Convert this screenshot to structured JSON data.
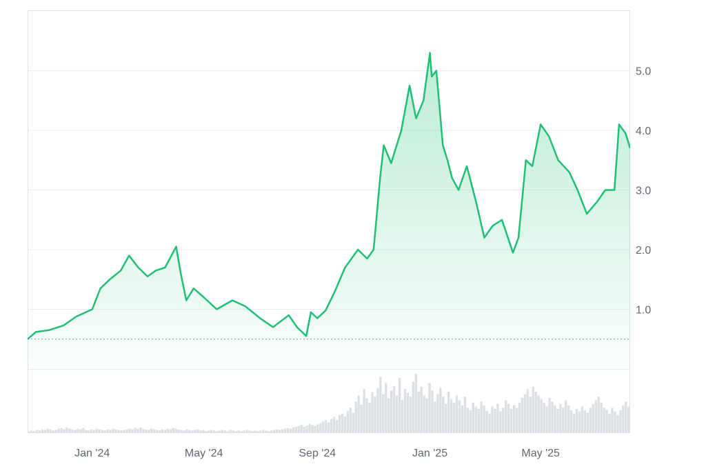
{
  "colors": {
    "line": "#1fbf75",
    "grid": "#ececf0",
    "border": "#dfe1e6",
    "volume": "#dcdfe4",
    "baseline": "#8a8f98",
    "text": "#5f6672"
  },
  "chart_data": {
    "type": "area",
    "title": "",
    "xlabel": "",
    "ylabel": "",
    "x_range": [
      "2023-10-23",
      "2025-08-06"
    ],
    "ylim": [
      0,
      6.0
    ],
    "y_ticks": [
      "1.0",
      "2.0",
      "3.0",
      "4.0",
      "5.0"
    ],
    "x_ticks": [
      {
        "date": "2024-01-01",
        "label": "Jan '24"
      },
      {
        "date": "2024-05-01",
        "label": "May '24"
      },
      {
        "date": "2024-09-01",
        "label": "Sep '24"
      },
      {
        "date": "2025-01-01",
        "label": "Jan '25"
      },
      {
        "date": "2025-05-01",
        "label": "May '25"
      }
    ],
    "start_price": 0.5,
    "series": [
      {
        "x": [
          "2023-10-23",
          "2023-11-01",
          "2023-11-15",
          "2023-12-01",
          "2023-12-15",
          "2024-01-01",
          "2024-01-10",
          "2024-01-20",
          "2024-02-01",
          "2024-02-10",
          "2024-02-20",
          "2024-03-01",
          "2024-03-10",
          "2024-03-20",
          "2024-04-01",
          "2024-04-06",
          "2024-04-12",
          "2024-04-20",
          "2024-05-01",
          "2024-05-15",
          "2024-06-01",
          "2024-06-15",
          "2024-07-01",
          "2024-07-15",
          "2024-08-01",
          "2024-08-10",
          "2024-08-20",
          "2024-08-25",
          "2024-09-01",
          "2024-09-10",
          "2024-09-20",
          "2024-10-01",
          "2024-10-15",
          "2024-10-25",
          "2024-11-01",
          "2024-11-08",
          "2024-11-12",
          "2024-11-20",
          "2024-12-01",
          "2024-12-10",
          "2024-12-17",
          "2024-12-25",
          "2025-01-01",
          "2025-01-03",
          "2025-01-08",
          "2025-01-15",
          "2025-01-20",
          "2025-01-25",
          "2025-02-01",
          "2025-02-10",
          "2025-02-20",
          "2025-03-01",
          "2025-03-10",
          "2025-03-20",
          "2025-04-01",
          "2025-04-07",
          "2025-04-15",
          "2025-04-22",
          "2025-05-01",
          "2025-05-10",
          "2025-05-20",
          "2025-06-01",
          "2025-06-10",
          "2025-06-20",
          "2025-07-01",
          "2025-07-10",
          "2025-07-20",
          "2025-07-25",
          "2025-08-01",
          "2025-08-06"
        ],
        "y": [
          0.5,
          0.62,
          0.65,
          0.73,
          0.88,
          1.0,
          1.35,
          1.5,
          1.65,
          1.9,
          1.7,
          1.55,
          1.65,
          1.7,
          2.05,
          1.6,
          1.15,
          1.35,
          1.2,
          1.0,
          1.15,
          1.05,
          0.85,
          0.7,
          0.9,
          0.7,
          0.55,
          0.95,
          0.85,
          0.98,
          1.3,
          1.7,
          2.0,
          1.85,
          2.0,
          3.2,
          3.75,
          3.45,
          4.0,
          4.75,
          4.2,
          4.5,
          5.3,
          4.9,
          5.0,
          3.75,
          3.5,
          3.2,
          3.0,
          3.4,
          2.8,
          2.2,
          2.4,
          2.5,
          1.95,
          2.2,
          3.5,
          3.4,
          4.1,
          3.9,
          3.5,
          3.3,
          3.0,
          2.6,
          2.8,
          3.0,
          3.0,
          4.1,
          3.95,
          3.7
        ]
      }
    ],
    "volume": [
      2,
      3,
      2,
      4,
      3,
      5,
      4,
      6,
      5,
      3,
      4,
      6,
      7,
      5,
      8,
      6,
      5,
      4,
      6,
      5,
      7,
      4,
      3,
      5,
      4,
      6,
      5,
      4,
      3,
      5,
      4,
      6,
      5,
      4,
      3,
      4,
      5,
      6,
      5,
      7,
      6,
      8,
      6,
      5,
      4,
      6,
      5,
      4,
      3,
      5,
      4,
      6,
      5,
      7,
      6,
      5,
      4,
      3,
      5,
      4,
      3,
      4,
      5,
      3,
      4,
      2,
      3,
      4,
      3,
      2,
      3,
      4,
      3,
      2,
      4,
      3,
      2,
      3,
      2,
      3,
      4,
      3,
      2,
      3,
      2,
      3,
      4,
      3,
      2,
      3,
      4,
      5,
      4,
      5,
      6,
      7,
      6,
      8,
      9,
      10,
      12,
      9,
      11,
      14,
      12,
      10,
      13,
      15,
      18,
      20,
      16,
      22,
      25,
      20,
      28,
      30,
      26,
      35,
      40,
      32,
      50,
      60,
      45,
      70,
      55,
      48,
      65,
      58,
      72,
      90,
      62,
      80,
      55,
      68,
      75,
      60,
      88,
      52,
      70,
      64,
      58,
      82,
      95,
      66,
      74,
      60,
      55,
      80,
      68,
      50,
      62,
      72,
      58,
      46,
      66,
      54,
      48,
      60,
      52,
      44,
      58,
      40,
      36,
      48,
      42,
      38,
      50,
      44,
      35,
      30,
      42,
      38,
      46,
      34,
      40,
      52,
      46,
      38,
      44,
      40,
      48,
      56,
      62,
      70,
      58,
      74,
      66,
      60,
      54,
      48,
      42,
      56,
      50,
      44,
      38,
      46,
      40,
      52,
      44,
      36,
      30,
      38,
      34,
      42,
      36,
      32,
      40,
      46,
      52,
      58,
      48,
      40,
      36,
      30,
      40,
      34,
      28,
      36,
      44,
      50,
      42
    ]
  }
}
